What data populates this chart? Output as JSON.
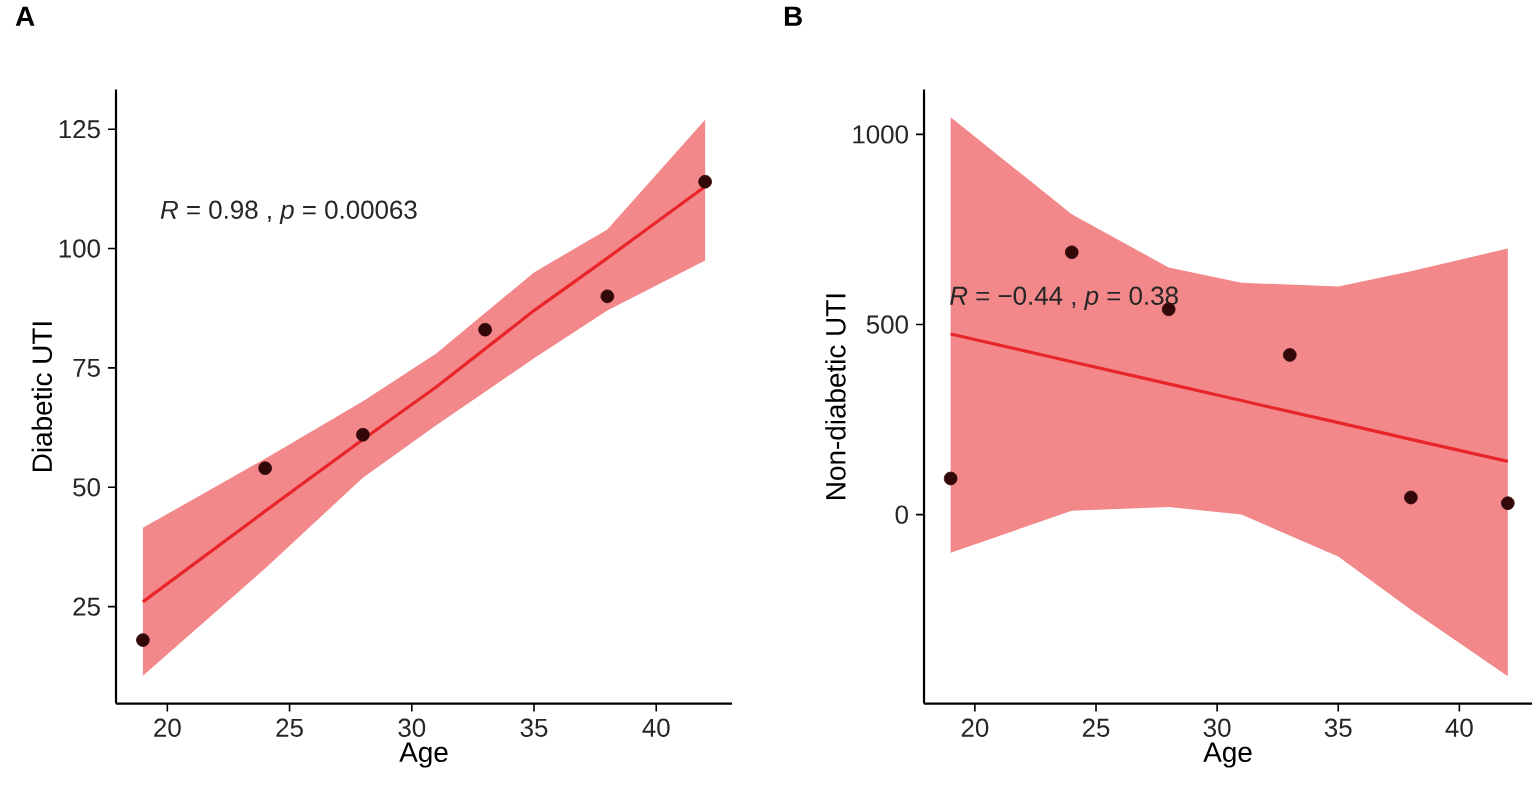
{
  "chart_data": [
    {
      "type": "scatter",
      "title": "A",
      "xlabel": "Age",
      "ylabel": "Diabetic UTI",
      "xlim": [
        17.9,
        43.1
      ],
      "ylim": [
        4.7,
        133.3
      ],
      "xticks": [
        20,
        25,
        30,
        35,
        40
      ],
      "yticks": [
        25,
        50,
        75,
        100,
        125
      ],
      "grid": false,
      "annotations": [
        "*R* =  0.98 , *p* =  0.00063"
      ],
      "series": [
        {
          "type": "line",
          "color": "#e8262a",
          "x": [
            19,
            24,
            28,
            31,
            35,
            38,
            42
          ],
          "values": [
            26,
            45,
            60,
            71,
            87,
            98,
            113
          ],
          "lower": [
            10.5,
            33,
            52,
            63,
            77,
            87,
            97.5
          ],
          "upper": [
            41.5,
            56,
            68,
            78,
            95,
            104,
            127
          ]
        },
        {
          "type": "scatter",
          "color": "#330808",
          "marker": "circle",
          "x": [
            19,
            24,
            28,
            33,
            38,
            42
          ],
          "values": [
            18,
            54,
            61,
            83,
            90,
            114
          ]
        }
      ]
    },
    {
      "type": "scatter",
      "title": "B",
      "xlabel": "Age",
      "ylabel": "Non-diabetic UTI",
      "xlim": [
        17.9,
        43.0
      ],
      "ylim": [
        -497,
        1118
      ],
      "xticks": [
        20,
        25,
        30,
        35,
        40
      ],
      "yticks": [
        0,
        500,
        1000
      ],
      "grid": false,
      "annotations": [
        "*R* =  −0.44 , *p* =  0.38"
      ],
      "series": [
        {
          "type": "line",
          "color": "#e8262a",
          "x": [
            19,
            24,
            28,
            31,
            35,
            38,
            42
          ],
          "values": [
            475,
            402,
            344,
            300,
            242,
            198,
            140
          ],
          "lower": [
            -100,
            10,
            20,
            0,
            -110,
            -250,
            -425
          ],
          "upper": [
            1045,
            790,
            650,
            610,
            600,
            640,
            700
          ]
        },
        {
          "type": "scatter",
          "color": "#330808",
          "marker": "circle",
          "x": [
            19,
            24,
            28,
            33,
            38,
            42
          ],
          "values": [
            95,
            690,
            540,
            420,
            45,
            30
          ]
        }
      ]
    }
  ]
}
